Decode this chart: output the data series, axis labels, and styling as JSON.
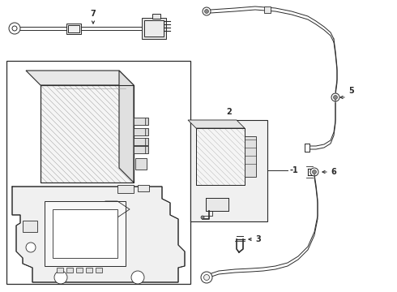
{
  "bg_color": "#ffffff",
  "line_color": "#2a2a2a",
  "fig_width": 4.9,
  "fig_height": 3.6,
  "dpi": 100,
  "label_fontsize": 7,
  "label_fontsize_small": 6
}
